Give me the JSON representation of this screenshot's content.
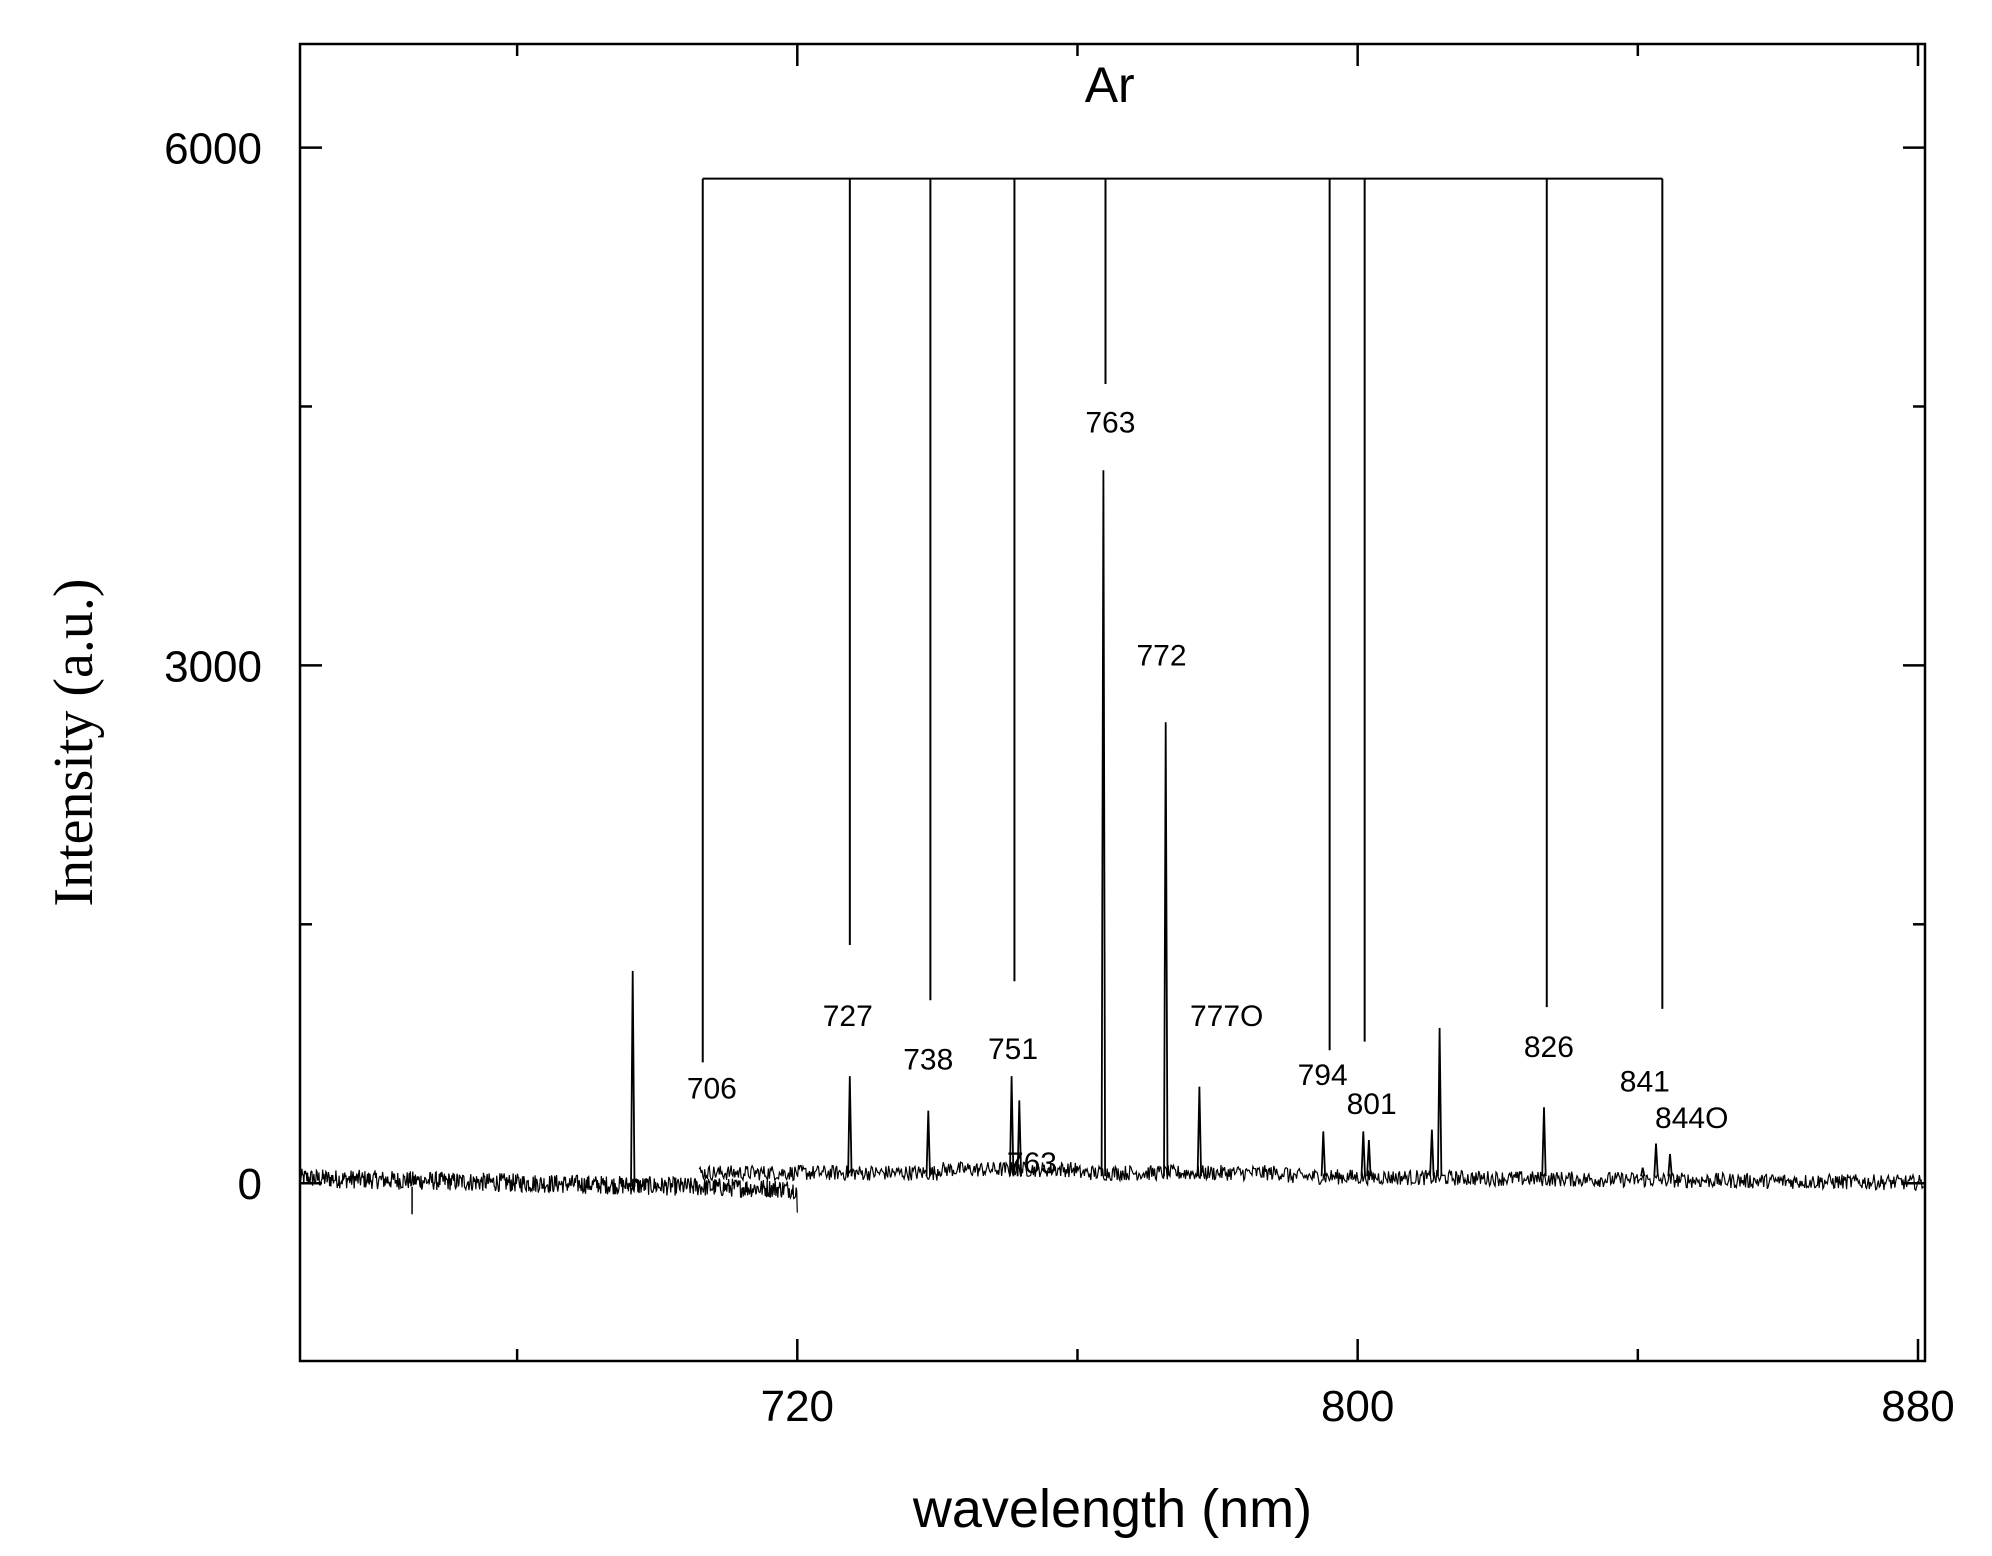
{
  "chart_data": {
    "type": "line",
    "title": "",
    "xlabel": "wavelength (nm)",
    "ylabel": "Intensity (a.u.)",
    "xlim": [
      649,
      881
    ],
    "ylim": [
      -1030,
      6600
    ],
    "x_ticks": [
      720,
      800,
      880
    ],
    "y_ticks": [
      0,
      3000,
      6000
    ],
    "x_minor_ticks": [
      680,
      760,
      840
    ],
    "y_minor_ticks": [
      1500,
      4500
    ],
    "grid": false,
    "legend": "none",
    "group_label": "Ar",
    "bracket": {
      "x_start": 706.5,
      "x_end": 843.5,
      "y": 5820,
      "lines": [
        {
          "x": 706.5,
          "y_bottom": 700
        },
        {
          "x": 727.5,
          "y_bottom": 1380
        },
        {
          "x": 739.0,
          "y_bottom": 1060
        },
        {
          "x": 751.0,
          "y_bottom": 1170
        },
        {
          "x": 764.0,
          "y_bottom": 4630
        },
        {
          "x": 796.0,
          "y_bottom": 770
        },
        {
          "x": 801.0,
          "y_bottom": 820
        },
        {
          "x": 827.0,
          "y_bottom": 1020
        },
        {
          "x": 843.5,
          "y_bottom": 1010
        }
      ]
    },
    "series": [
      {
        "peaks": [
          {
            "x": 696.5,
            "y": 1230
          },
          {
            "x": 727.5,
            "y": 620
          },
          {
            "x": 738.7,
            "y": 420
          },
          {
            "x": 750.6,
            "y": 620
          },
          {
            "x": 751.7,
            "y": 480
          },
          {
            "x": 763.7,
            "y": 4130
          },
          {
            "x": 772.6,
            "y": 2670
          },
          {
            "x": 777.4,
            "y": 560
          },
          {
            "x": 795.1,
            "y": 300
          },
          {
            "x": 800.8,
            "y": 300
          },
          {
            "x": 801.6,
            "y": 250
          },
          {
            "x": 810.6,
            "y": 310
          },
          {
            "x": 811.7,
            "y": 900
          },
          {
            "x": 826.6,
            "y": 440
          },
          {
            "x": 840.7,
            "y": 90
          },
          {
            "x": 842.6,
            "y": 230
          },
          {
            "x": 844.6,
            "y": 170
          }
        ]
      }
    ],
    "annotations": [
      {
        "text": "706",
        "x": 707.8,
        "y": 490
      },
      {
        "text": "727",
        "x": 727.2,
        "y": 910
      },
      {
        "text": "738",
        "x": 738.7,
        "y": 660
      },
      {
        "text": "751",
        "x": 750.8,
        "y": 720
      },
      {
        "text": "763",
        "x": 753.5,
        "y": 60
      },
      {
        "text": "763",
        "x": 764.7,
        "y": 4350
      },
      {
        "text": "772",
        "x": 772.0,
        "y": 3000
      },
      {
        "text": "777O",
        "x": 781.3,
        "y": 910
      },
      {
        "text": "794",
        "x": 795.0,
        "y": 570
      },
      {
        "text": "801",
        "x": 802.0,
        "y": 400
      },
      {
        "text": "826",
        "x": 827.3,
        "y": 730
      },
      {
        "text": "841",
        "x": 841.0,
        "y": 530
      },
      {
        "text": "844O",
        "x": 847.7,
        "y": 320
      }
    ]
  }
}
